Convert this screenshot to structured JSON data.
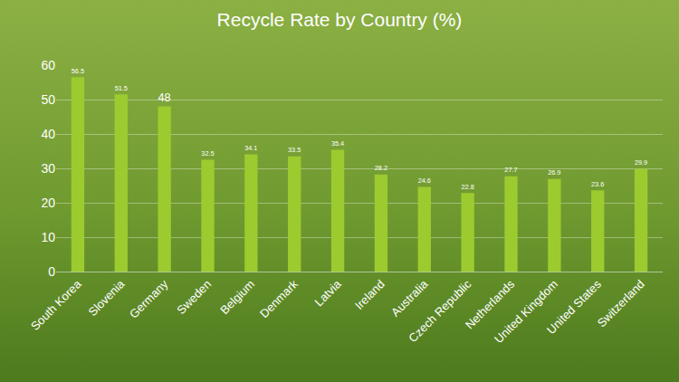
{
  "chart_data": {
    "type": "bar",
    "title": "Recycle Rate by Country (%)",
    "categories": [
      "South Korea",
      "Slovenia",
      "Germany",
      "Sweden",
      "Belgium",
      "Denmark",
      "Latvia",
      "Ireland",
      "Australia",
      "Czech Republic",
      "Netherlands",
      "United Kingdom",
      "United States",
      "Switzerland"
    ],
    "values": [
      56.5,
      51.5,
      48,
      32.5,
      34.1,
      33.5,
      35.4,
      28.2,
      24.6,
      22.8,
      27.7,
      26.9,
      23.6,
      29.9
    ],
    "color": "#9bcb2e",
    "ylim": [
      0,
      60
    ],
    "yticks": [
      0,
      10,
      20,
      30,
      40,
      50,
      60
    ],
    "grid": true,
    "data_labels": true
  }
}
